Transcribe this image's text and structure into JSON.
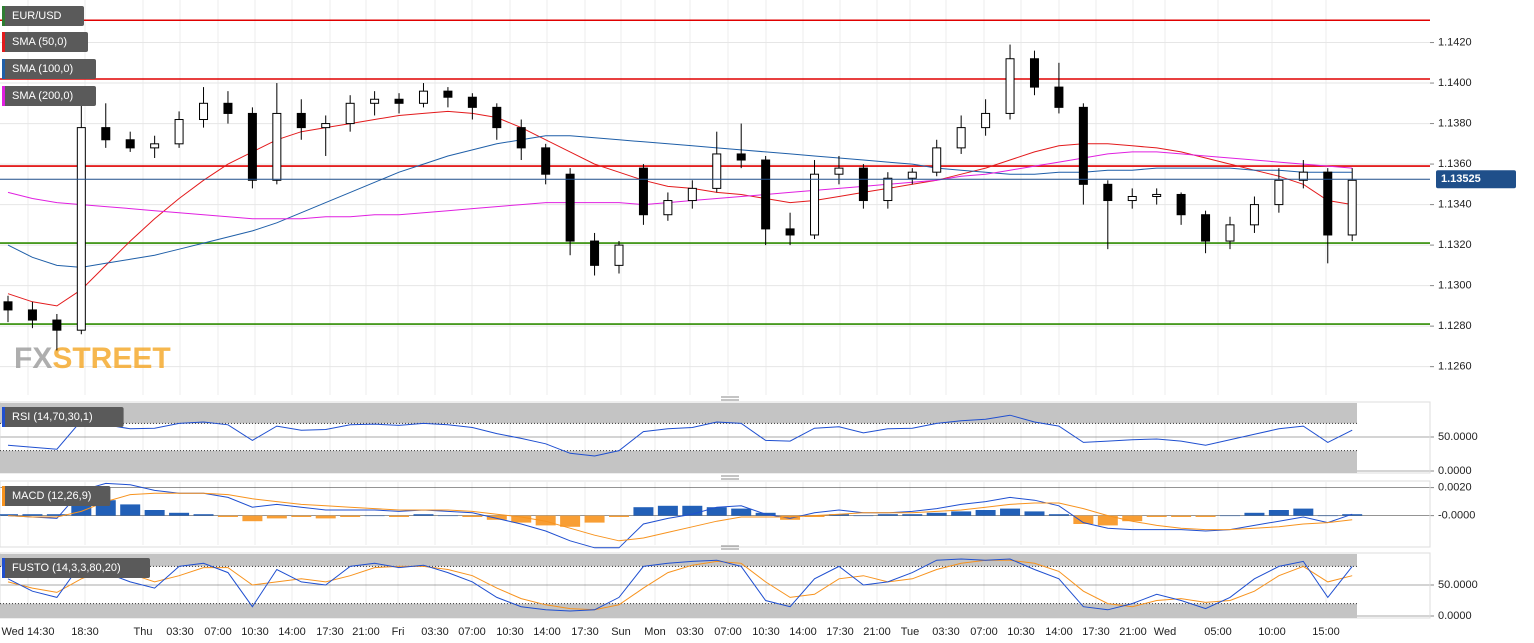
{
  "chart_data": [
    {
      "type": "candlestick",
      "title": "EUR/USD",
      "title_color": "#2e7d32",
      "ohlc": [
        [
          1.1292,
          1.1295,
          1.1282,
          1.1288
        ],
        [
          1.1288,
          1.1292,
          1.1279,
          1.1283
        ],
        [
          1.1283,
          1.1286,
          1.1268,
          1.1278
        ],
        [
          1.1278,
          1.1392,
          1.1276,
          1.1378
        ],
        [
          1.1378,
          1.139,
          1.1368,
          1.1372
        ],
        [
          1.1372,
          1.1376,
          1.1366,
          1.1368
        ],
        [
          1.1368,
          1.1374,
          1.1363,
          1.137
        ],
        [
          1.137,
          1.1386,
          1.1368,
          1.1382
        ],
        [
          1.1382,
          1.1398,
          1.1378,
          1.139
        ],
        [
          1.139,
          1.1396,
          1.138,
          1.1385
        ],
        [
          1.1385,
          1.1388,
          1.1348,
          1.1352
        ],
        [
          1.1352,
          1.14,
          1.135,
          1.1385
        ],
        [
          1.1385,
          1.1392,
          1.1372,
          1.1378
        ],
        [
          1.1378,
          1.1384,
          1.1364,
          1.138
        ],
        [
          1.138,
          1.1394,
          1.1376,
          1.139
        ],
        [
          1.139,
          1.1396,
          1.1384,
          1.1392
        ],
        [
          1.1392,
          1.1395,
          1.1385,
          1.139
        ],
        [
          1.139,
          1.14,
          1.1388,
          1.1396
        ],
        [
          1.1396,
          1.1398,
          1.1388,
          1.1393
        ],
        [
          1.1393,
          1.1395,
          1.1382,
          1.1388
        ],
        [
          1.1388,
          1.139,
          1.1372,
          1.1378
        ],
        [
          1.1378,
          1.1382,
          1.1362,
          1.1368
        ],
        [
          1.1368,
          1.137,
          1.135,
          1.1355
        ],
        [
          1.1355,
          1.1358,
          1.1315,
          1.1322
        ],
        [
          1.1322,
          1.1326,
          1.1305,
          1.131
        ],
        [
          1.131,
          1.1322,
          1.1306,
          1.132
        ],
        [
          1.1358,
          1.136,
          1.133,
          1.1335
        ],
        [
          1.1335,
          1.1346,
          1.1332,
          1.1342
        ],
        [
          1.1342,
          1.1352,
          1.1338,
          1.1348
        ],
        [
          1.1348,
          1.1376,
          1.1346,
          1.1365
        ],
        [
          1.1365,
          1.138,
          1.1358,
          1.1362
        ],
        [
          1.1362,
          1.1364,
          1.132,
          1.1328
        ],
        [
          1.1328,
          1.1336,
          1.132,
          1.1325
        ],
        [
          1.1325,
          1.1362,
          1.1323,
          1.1355
        ],
        [
          1.1355,
          1.1364,
          1.135,
          1.1358
        ],
        [
          1.1358,
          1.136,
          1.1338,
          1.1342
        ],
        [
          1.1342,
          1.1356,
          1.1338,
          1.1353
        ],
        [
          1.1353,
          1.1358,
          1.135,
          1.1356
        ],
        [
          1.1356,
          1.1372,
          1.1354,
          1.1368
        ],
        [
          1.1368,
          1.1384,
          1.1365,
          1.1378
        ],
        [
          1.1378,
          1.1392,
          1.1374,
          1.1385
        ],
        [
          1.1385,
          1.1419,
          1.1382,
          1.1412
        ],
        [
          1.1412,
          1.1416,
          1.1394,
          1.1398
        ],
        [
          1.1398,
          1.141,
          1.1385,
          1.1388
        ],
        [
          1.1388,
          1.139,
          1.134,
          1.135
        ],
        [
          1.135,
          1.1352,
          1.1318,
          1.1342
        ],
        [
          1.1342,
          1.1348,
          1.1338,
          1.1344
        ],
        [
          1.1344,
          1.1348,
          1.134,
          1.1345
        ],
        [
          1.1345,
          1.1346,
          1.133,
          1.1335
        ],
        [
          1.1335,
          1.1337,
          1.1316,
          1.1322
        ],
        [
          1.1322,
          1.1334,
          1.1318,
          1.133
        ],
        [
          1.133,
          1.1344,
          1.1326,
          1.134
        ],
        [
          1.134,
          1.1358,
          1.1336,
          1.1352
        ],
        [
          1.1352,
          1.1362,
          1.1348,
          1.1356
        ],
        [
          1.1356,
          1.1358,
          1.1311,
          1.1325
        ],
        [
          1.1325,
          1.1358,
          1.1322,
          1.1352
        ]
      ],
      "series": [
        {
          "name": "SMA (50,0)",
          "color": "#e31a1c",
          "values": [
            1.1296,
            1.1292,
            1.129,
            1.1298,
            1.131,
            1.1322,
            1.1333,
            1.1343,
            1.1352,
            1.136,
            1.1366,
            1.1372,
            1.1376,
            1.1378,
            1.138,
            1.1382,
            1.1384,
            1.1385,
            1.1386,
            1.1385,
            1.1383,
            1.1378,
            1.1372,
            1.1366,
            1.136,
            1.1356,
            1.1352,
            1.1349,
            1.1348,
            1.1346,
            1.1345,
            1.1343,
            1.1341,
            1.1342,
            1.1344,
            1.1346,
            1.1348,
            1.135,
            1.1352,
            1.1355,
            1.1358,
            1.1362,
            1.1366,
            1.1369,
            1.137,
            1.137,
            1.1369,
            1.1368,
            1.1366,
            1.1363,
            1.136,
            1.1357,
            1.1354,
            1.135,
            1.1342,
            1.134
          ]
        },
        {
          "name": "SMA (100,0)",
          "color": "#1f5fa8",
          "values": [
            1.132,
            1.1314,
            1.131,
            1.1309,
            1.1311,
            1.1313,
            1.1315,
            1.1318,
            1.1321,
            1.1324,
            1.1327,
            1.1331,
            1.1336,
            1.1341,
            1.1346,
            1.1351,
            1.1356,
            1.136,
            1.1364,
            1.1367,
            1.137,
            1.1372,
            1.1374,
            1.1374,
            1.1373,
            1.1372,
            1.1371,
            1.137,
            1.1369,
            1.1368,
            1.1367,
            1.1366,
            1.1365,
            1.1364,
            1.1363,
            1.1362,
            1.1361,
            1.136,
            1.1358,
            1.1357,
            1.1356,
            1.1355,
            1.1355,
            1.1356,
            1.1356,
            1.1357,
            1.1357,
            1.1358,
            1.1358,
            1.1358,
            1.1358,
            1.1357,
            1.1357,
            1.1356,
            1.1356,
            1.1356
          ]
        },
        {
          "name": "SMA (200,0)",
          "color": "#e020e0",
          "values": [
            1.1346,
            1.1343,
            1.1341,
            1.134,
            1.1339,
            1.1338,
            1.1337,
            1.1336,
            1.1335,
            1.1334,
            1.1333,
            1.1333,
            1.1333,
            1.1334,
            1.1334,
            1.1335,
            1.1335,
            1.1336,
            1.1337,
            1.1338,
            1.1339,
            1.134,
            1.1341,
            1.1341,
            1.1341,
            1.1341,
            1.134,
            1.1341,
            1.1342,
            1.1343,
            1.1344,
            1.1345,
            1.1346,
            1.1347,
            1.1348,
            1.1349,
            1.135,
            1.1351,
            1.1352,
            1.1354,
            1.1355,
            1.1357,
            1.1359,
            1.1361,
            1.1363,
            1.1365,
            1.1366,
            1.1366,
            1.1365,
            1.1364,
            1.1363,
            1.1362,
            1.1361,
            1.136,
            1.1359,
            1.1358
          ]
        }
      ],
      "levels": [
        {
          "value": 1.1431,
          "color": "#e00000"
        },
        {
          "value": 1.1402,
          "color": "#e00000"
        },
        {
          "value": 1.1359,
          "color": "#e00000"
        },
        {
          "value": 1.1321,
          "color": "#2e8b00"
        },
        {
          "value": 1.1281,
          "color": "#2e8b00"
        }
      ],
      "last_price": 1.13525,
      "ylim": [
        1.1246,
        1.1441
      ],
      "yticks": [
        {
          "value": 1.126,
          "label": "1.1260"
        },
        {
          "value": 1.128,
          "label": "1.1280"
        },
        {
          "value": 1.13,
          "label": "1.1300"
        },
        {
          "value": 1.132,
          "label": "1.1320"
        },
        {
          "value": 1.134,
          "label": "1.1340"
        },
        {
          "value": 1.136,
          "label": "1.1360"
        },
        {
          "value": 1.138,
          "label": "1.1380"
        },
        {
          "value": 1.14,
          "label": "1.1400"
        },
        {
          "value": 1.142,
          "label": "1.1420"
        }
      ],
      "time_labels": [
        "Wed 14:30",
        "18:30",
        "Thu",
        "03:30",
        "07:00",
        "10:30",
        "14:00",
        "17:30",
        "21:00",
        "Fri",
        "03:30",
        "07:00",
        "10:30",
        "14:00",
        "17:30",
        "Sun",
        "Mon",
        "03:30",
        "07:00",
        "10:30",
        "14:00",
        "17:30",
        "21:00",
        "Tue",
        "03:30",
        "07:00",
        "10:30",
        "14:00",
        "17:30",
        "21:00",
        "Wed",
        "05:00",
        "10:00",
        "15:00"
      ],
      "watermark": [
        "FX",
        "STREET"
      ]
    },
    {
      "type": "line",
      "title": "RSI (14,70,30,1)",
      "bands": [
        30,
        70
      ],
      "ylim": [
        0,
        100
      ],
      "yticks": [
        {
          "value": 0,
          "label": "0.0000"
        },
        {
          "value": 50,
          "label": "50.0000"
        }
      ],
      "series": [
        {
          "color": "#1f4fd0",
          "values": [
            38,
            35,
            32,
            74,
            68,
            62,
            63,
            70,
            72,
            68,
            45,
            66,
            60,
            61,
            68,
            69,
            67,
            70,
            68,
            64,
            55,
            48,
            40,
            26,
            22,
            30,
            58,
            62,
            64,
            72,
            70,
            45,
            44,
            63,
            65,
            56,
            62,
            63,
            70,
            74,
            76,
            82,
            72,
            66,
            42,
            44,
            46,
            47,
            44,
            38,
            46,
            54,
            62,
            66,
            42,
            60
          ]
        }
      ]
    },
    {
      "type": "macd",
      "title": "MACD (12,26,9)",
      "ylim": [
        -0.0021,
        0.0024
      ],
      "yticks": [
        {
          "value": 0,
          "label": "-0.0000"
        },
        {
          "value": 0.002,
          "label": "0.0020"
        }
      ],
      "histogram": {
        "up_color": "#0a4fb0",
        "down_color": "#f7931e",
        "values": [
          0.0001,
          0.0001,
          0.0001,
          0.001,
          0.0011,
          0.0008,
          0.0004,
          0.0002,
          0.0001,
          -0.0001,
          -0.0004,
          -0.0002,
          -0.0001,
          -0.0002,
          -0.0001,
          0,
          -0.0001,
          0.0001,
          0,
          -0.0001,
          -0.0003,
          -0.0005,
          -0.0007,
          -0.0008,
          -0.0005,
          -0.0001,
          0.0006,
          0.0007,
          0.0007,
          0.0006,
          0.0005,
          0.0002,
          -0.0003,
          -0.0001,
          0.0001,
          0,
          0.0001,
          0.0001,
          0.0002,
          0.0003,
          0.0004,
          0.0005,
          0.0003,
          0.0001,
          -0.0006,
          -0.0007,
          -0.0004,
          -0.0001,
          -0.0001,
          -0.0001,
          0,
          0.0002,
          0.0004,
          0.0005,
          0,
          0.0001
        ]
      },
      "series": [
        {
          "color": "#1f4fd0",
          "values": [
            0,
            -0.0001,
            -0.0002,
            0.0018,
            0.0023,
            0.0022,
            0.0018,
            0.0016,
            0.0016,
            0.0013,
            0.0006,
            0.0008,
            0.0006,
            0.0004,
            0.0004,
            0.0004,
            0.0003,
            0.0004,
            0.0003,
            0.0002,
            -0.0002,
            -0.0006,
            -0.0011,
            -0.0018,
            -0.0023,
            -0.0023,
            -0.0006,
            -0.0002,
            0.0001,
            0.0006,
            0.0007,
            0.0001,
            -0.0002,
            0.0002,
            0.0004,
            0.0002,
            0.0002,
            0.0003,
            0.0005,
            0.0008,
            0.001,
            0.0013,
            0.0011,
            0.0007,
            -0.0005,
            -0.0009,
            -0.001,
            -0.001,
            -0.001,
            -0.0011,
            -0.001,
            -0.0007,
            -0.0004,
            -0.0001,
            -0.0005,
            0.0001
          ]
        },
        {
          "color": "#f7931e",
          "values": [
            0,
            -0.0001,
            -0.0001,
            0.0003,
            0.001,
            0.0015,
            0.0016,
            0.0016,
            0.0016,
            0.0015,
            0.0012,
            0.001,
            0.0008,
            0.0007,
            0.0006,
            0.0005,
            0.0004,
            0.0004,
            0.0004,
            0.0003,
            0.0001,
            -0.0001,
            -0.0004,
            -0.0009,
            -0.0014,
            -0.0018,
            -0.0016,
            -0.0012,
            -0.0008,
            -0.0004,
            -0.0001,
            -0.0001,
            -0.0001,
            0,
            0.0001,
            0.0002,
            0.0002,
            0.0002,
            0.0003,
            0.0004,
            0.0006,
            0.0008,
            0.0009,
            0.0009,
            0.0005,
            0,
            -0.0004,
            -0.0007,
            -0.0009,
            -0.001,
            -0.001,
            -0.0009,
            -0.0008,
            -0.0006,
            -0.0005,
            -0.0003
          ]
        }
      ]
    },
    {
      "type": "line",
      "title": "FUSTO (14,3,3,80,20)",
      "bands": [
        20,
        80
      ],
      "ylim": [
        0,
        100
      ],
      "yticks": [
        {
          "value": 0,
          "label": "0.0000"
        },
        {
          "value": 50,
          "label": "50.0000"
        }
      ],
      "series": [
        {
          "color": "#f7931e",
          "values": [
            55,
            45,
            38,
            60,
            75,
            68,
            55,
            65,
            78,
            78,
            50,
            55,
            60,
            55,
            65,
            78,
            80,
            80,
            75,
            65,
            45,
            28,
            18,
            12,
            10,
            18,
            45,
            70,
            82,
            88,
            85,
            55,
            30,
            35,
            60,
            65,
            55,
            60,
            75,
            85,
            90,
            90,
            85,
            72,
            40,
            20,
            15,
            25,
            28,
            22,
            25,
            40,
            65,
            80,
            55,
            65
          ]
        },
        {
          "color": "#1f4fd0",
          "values": [
            60,
            40,
            30,
            85,
            70,
            55,
            45,
            80,
            85,
            70,
            15,
            75,
            55,
            50,
            80,
            85,
            78,
            82,
            70,
            55,
            30,
            15,
            10,
            8,
            10,
            30,
            80,
            85,
            88,
            90,
            80,
            25,
            15,
            60,
            80,
            50,
            55,
            70,
            90,
            92,
            90,
            92,
            75,
            60,
            15,
            10,
            20,
            35,
            25,
            12,
            30,
            60,
            80,
            88,
            30,
            80
          ]
        }
      ]
    }
  ]
}
